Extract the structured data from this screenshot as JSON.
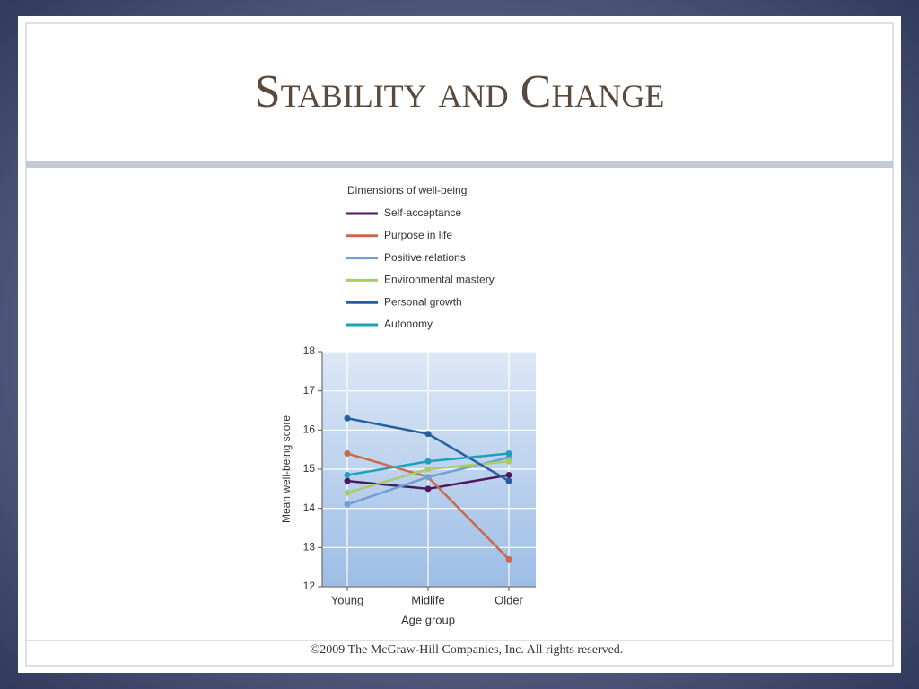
{
  "title": "Stability and Change",
  "footer": "©2009 The McGraw-Hill Companies, Inc. All rights reserved.",
  "chart_data": {
    "type": "line",
    "legend_title": "Dimensions of well-being",
    "x_label": "Age group",
    "y_label": "Mean well-being score",
    "categories": [
      "Young",
      "Midlife",
      "Older"
    ],
    "ylim": [
      12,
      18
    ],
    "yticks": [
      12,
      13,
      14,
      15,
      16,
      17,
      18
    ],
    "grid": true,
    "series": [
      {
        "name": "Self-acceptance",
        "color": "#4b1a5c",
        "values": [
          14.7,
          14.5,
          14.85
        ]
      },
      {
        "name": "Purpose in life",
        "color": "#c8694a",
        "values": [
          15.4,
          14.8,
          12.7
        ]
      },
      {
        "name": "Positive relations",
        "color": "#6f9fd4",
        "values": [
          14.1,
          14.8,
          15.3
        ]
      },
      {
        "name": "Environmental mastery",
        "color": "#a8cc6a",
        "values": [
          14.4,
          15.0,
          15.2
        ]
      },
      {
        "name": "Personal growth",
        "color": "#2360a0",
        "values": [
          16.3,
          15.9,
          14.7
        ]
      },
      {
        "name": "Autonomy",
        "color": "#1ea0b8",
        "values": [
          14.85,
          15.2,
          15.4
        ]
      }
    ]
  }
}
